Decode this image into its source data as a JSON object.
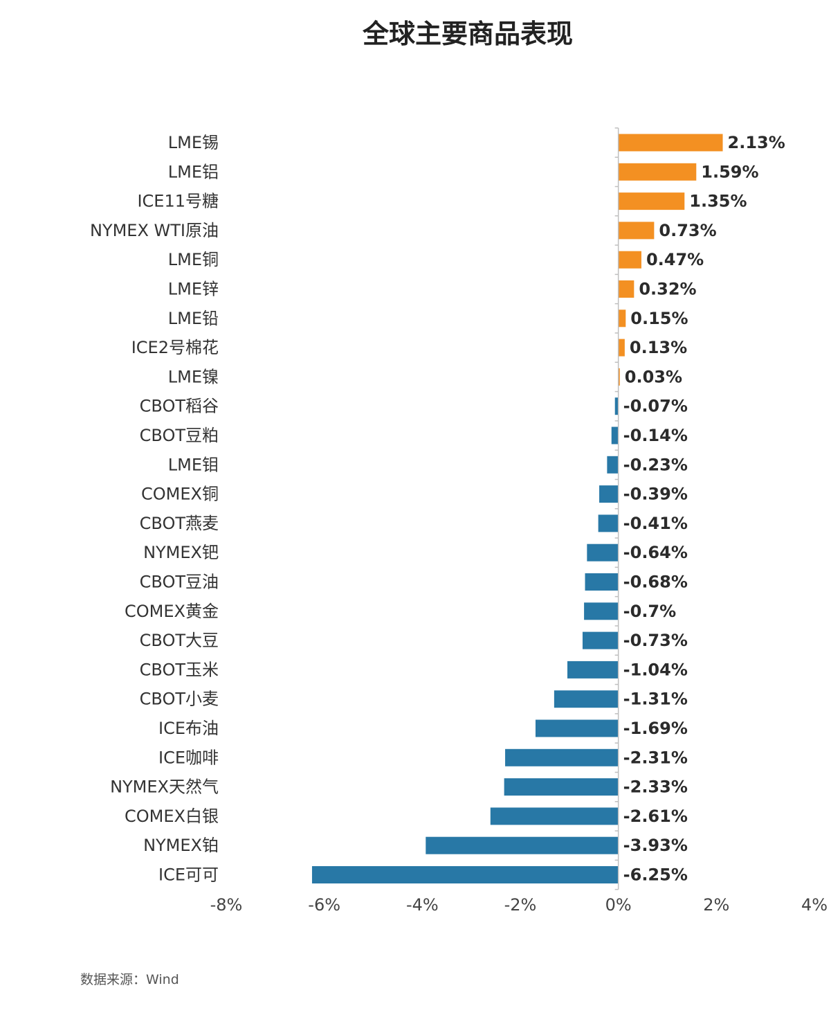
{
  "chart_data": {
    "type": "bar",
    "orientation": "horizontal",
    "title": "全球主要商品表现",
    "xlabel": "",
    "ylabel": "",
    "xlim": [
      -8,
      4
    ],
    "x_ticks": [
      -8,
      -6,
      -4,
      -2,
      0,
      2,
      4
    ],
    "x_tick_labels": [
      "-8%",
      "-6%",
      "-4%",
      "-2%",
      "0%",
      "2%",
      "4%"
    ],
    "unit": "%",
    "grid": false,
    "legend": "none",
    "colors": {
      "positive": "#f39022",
      "negative": "#2878a6"
    },
    "categories": [
      "LME锡",
      "LME铝",
      "ICE11号糖",
      "NYMEX WTI原油",
      "LME铜",
      "LME锌",
      "LME铅",
      "ICE2号棉花",
      "LME镍",
      "CBOT稻谷",
      "CBOT豆粕",
      "LME钼",
      "COMEX铜",
      "CBOT燕麦",
      "NYMEX钯",
      "CBOT豆油",
      "COMEX黄金",
      "CBOT大豆",
      "CBOT玉米",
      "CBOT小麦",
      "ICE布油",
      "ICE咖啡",
      "NYMEX天然气",
      "COMEX白银",
      "NYMEX铂",
      "ICE可可"
    ],
    "values": [
      2.13,
      1.59,
      1.35,
      0.73,
      0.47,
      0.32,
      0.15,
      0.13,
      0.03,
      -0.07,
      -0.14,
      -0.23,
      -0.39,
      -0.41,
      -0.64,
      -0.68,
      -0.7,
      -0.73,
      -1.04,
      -1.31,
      -1.69,
      -2.31,
      -2.33,
      -2.61,
      -3.93,
      -6.25
    ],
    "value_labels": [
      "2.13%",
      "1.59%",
      "1.35%",
      "0.73%",
      "0.47%",
      "0.32%",
      "0.15%",
      "0.13%",
      "0.03%",
      "-0.07%",
      "-0.14%",
      "-0.23%",
      "-0.39%",
      "-0.41%",
      "-0.64%",
      "-0.68%",
      "-0.7%",
      "-0.73%",
      "-1.04%",
      "-1.31%",
      "-1.69%",
      "-2.31%",
      "-2.33%",
      "-2.61%",
      "-3.93%",
      "-6.25%"
    ]
  },
  "source_note": "数据来源：Wind"
}
